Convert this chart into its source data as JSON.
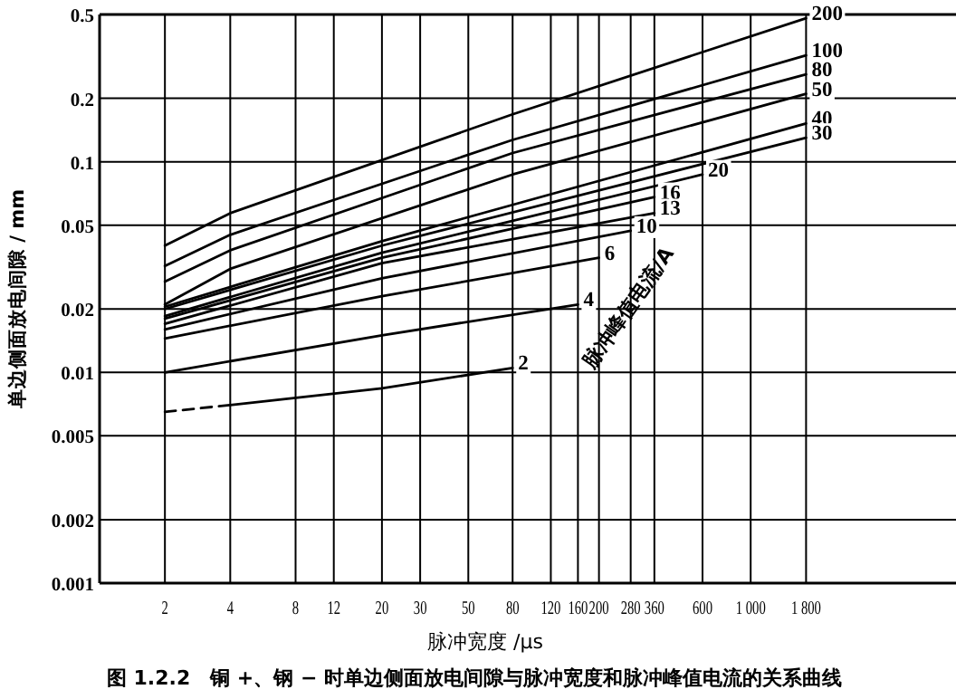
{
  "chart_data": {
    "type": "line",
    "title": "图 1.2.2　铜 +、钢 − 时单边侧面放电间隙与脉冲宽度和脉冲峰值电流的关系曲线",
    "xlabel": "脉冲宽度 /μs",
    "ylabel": "单边侧面放电间隙 / mm",
    "annotations": [
      "脉冲峰值电流/A"
    ],
    "log": "xy",
    "grid": true,
    "marker": "none",
    "line_style": "solid",
    "xlim": [
      1,
      8500
    ],
    "ylim": [
      0.001,
      0.5
    ],
    "xticks": [
      2,
      4,
      8,
      12,
      20,
      30,
      50,
      80,
      120,
      160,
      200,
      280,
      360,
      600,
      {
        "value": 1000,
        "label": "1 000"
      },
      {
        "value": 1800,
        "label": "1 800"
      }
    ],
    "yticks": [
      0.001,
      0.002,
      0.005,
      0.01,
      0.02,
      0.05,
      0.1,
      0.2,
      0.5
    ],
    "series": [
      {
        "name": "200",
        "color": "#000000",
        "x": [
          2,
          4,
          80,
          1800
        ],
        "values": [
          0.04,
          0.057,
          0.168,
          0.48
        ]
      },
      {
        "name": "100",
        "color": "#000000",
        "x": [
          2,
          4,
          80,
          1800
        ],
        "values": [
          0.032,
          0.045,
          0.127,
          0.32
        ]
      },
      {
        "name": "80",
        "color": "#000000",
        "x": [
          2,
          4,
          80,
          1800
        ],
        "values": [
          0.027,
          0.038,
          0.11,
          0.26
        ]
      },
      {
        "name": "50",
        "color": "#000000",
        "x": [
          2,
          4,
          80,
          1800
        ],
        "values": [
          0.021,
          0.031,
          0.087,
          0.21
        ]
      },
      {
        "name": "40",
        "color": "#000000",
        "x": [
          2,
          20,
          1800
        ],
        "values": [
          0.0205,
          0.042,
          0.152
        ]
      },
      {
        "name": "30",
        "color": "#000000",
        "x": [
          2,
          20,
          1800
        ],
        "values": [
          0.02,
          0.04,
          0.13
        ]
      },
      {
        "name": "20",
        "color": "#000000",
        "x": [
          2,
          20,
          600
        ],
        "values": [
          0.0185,
          0.037,
          0.087
        ]
      },
      {
        "name": "16",
        "color": "#000000",
        "x": [
          2,
          20,
          360
        ],
        "values": [
          0.018,
          0.035,
          0.068
        ]
      },
      {
        "name": "13",
        "color": "#000000",
        "x": [
          2,
          20,
          360
        ],
        "values": [
          0.017,
          0.033,
          0.057
        ]
      },
      {
        "name": "10",
        "color": "#000000",
        "x": [
          2,
          20,
          280
        ],
        "values": [
          0.016,
          0.028,
          0.047
        ]
      },
      {
        "name": "6",
        "color": "#000000",
        "x": [
          2,
          20,
          200
        ],
        "values": [
          0.0145,
          0.023,
          0.035
        ]
      },
      {
        "name": "4",
        "color": "#000000",
        "x": [
          2,
          20,
          160
        ],
        "values": [
          0.01,
          0.015,
          0.021
        ]
      },
      {
        "name": "2",
        "color": "#000000",
        "x": [
          4,
          20,
          80
        ],
        "values": [
          0.007,
          0.0084,
          0.0105
        ]
      },
      {
        "color": "#000000",
        "line_style": "dashed",
        "x": [
          2,
          4
        ],
        "values": [
          0.0065,
          0.007
        ]
      }
    ]
  }
}
